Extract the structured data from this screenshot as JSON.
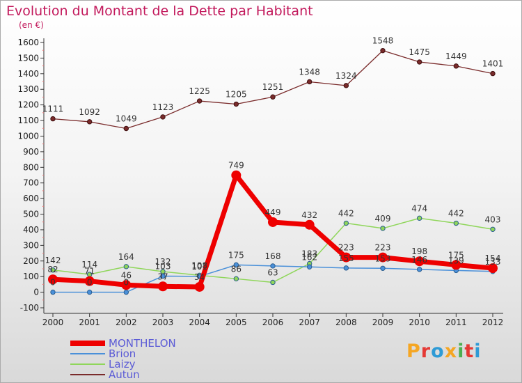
{
  "title": "Evolution du Montant de la Dette par Habitant",
  "unit_label": "(en €)",
  "logo_text": "Proxiti",
  "logo_colors": [
    "#f5a623",
    "#e53935",
    "#2e9bd6",
    "#f5a623",
    "#4caf50",
    "#e53935",
    "#2e9bd6"
  ],
  "chart_data": {
    "type": "line",
    "title": "Evolution du Montant de la Dette par Habitant",
    "subtitle": "(en €)",
    "x": [
      "2000",
      "2001",
      "2002",
      "2003",
      "2004",
      "2005",
      "2006",
      "2007",
      "2008",
      "2009",
      "2010",
      "2011",
      "2012"
    ],
    "ylim": [
      -100,
      1600
    ],
    "yticks": [
      -100,
      0,
      100,
      200,
      300,
      400,
      500,
      600,
      700,
      800,
      900,
      1000,
      1100,
      1200,
      1300,
      1400,
      1500,
      1600
    ],
    "grid": false,
    "legend_position": "bottom-left",
    "series": [
      {
        "name": "MONTHELON",
        "color": "#ee0000",
        "values": [
          82,
          71,
          46,
          37,
          34,
          749,
          449,
          432,
          223,
          223,
          198,
          175,
          154
        ],
        "labels": [
          "82",
          "71",
          "46",
          "37",
          "34",
          "749",
          "449",
          "432",
          "223",
          "223",
          "198",
          "175",
          "154"
        ]
      },
      {
        "name": "Brion",
        "color": "#4a90d9",
        "values": [
          0,
          0,
          0,
          103,
          101,
          175,
          168,
          162,
          155,
          153,
          146,
          139,
          133
        ],
        "labels": [
          "0",
          "0",
          "0",
          "103",
          "101",
          "175",
          "168",
          "162",
          "155",
          "153",
          "146",
          "139",
          "133"
        ]
      },
      {
        "name": "Laizy",
        "color": "#8fd65a",
        "values": [
          142,
          114,
          164,
          132,
          108,
          86,
          63,
          183,
          442,
          409,
          474,
          442,
          403
        ],
        "labels": [
          "142",
          "114",
          "164",
          "132",
          "108",
          "86",
          "63",
          "183",
          "442",
          "409",
          "474",
          "442",
          "403"
        ]
      },
      {
        "name": "Autun",
        "color": "#7a2b2b",
        "values": [
          1111,
          1092,
          1049,
          1123,
          1225,
          1205,
          1251,
          1348,
          1324,
          1548,
          1475,
          1449,
          1401
        ],
        "labels": [
          "1111",
          "1092",
          "1049",
          "1123",
          "1225",
          "1205",
          "1251",
          "1348",
          "1324",
          "1548",
          "1475",
          "1449",
          "1401"
        ]
      }
    ]
  }
}
